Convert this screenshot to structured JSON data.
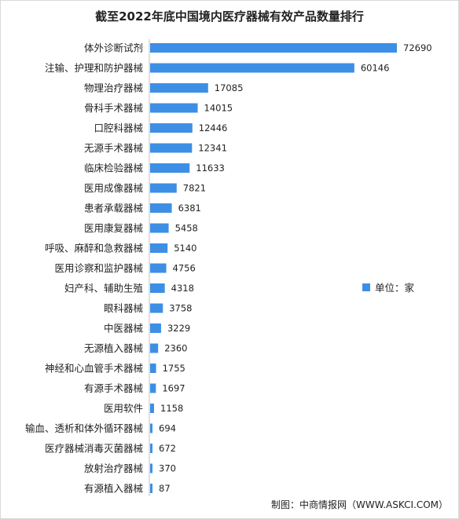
{
  "chart_data": {
    "type": "bar",
    "orientation": "horizontal",
    "title": "截至2022年底中国境内医疗器械有效产品数量排行",
    "categories": [
      "体外诊断试剂",
      "注输、护理和防护器械",
      "物理治疗器械",
      "骨科手术器械",
      "口腔科器械",
      "无源手术器械",
      "临床检验器械",
      "医用成像器械",
      "患者承载器械",
      "医用康复器械",
      "呼吸、麻醉和急救器械",
      "医用诊察和监护器械",
      "妇产科、辅助生殖",
      "眼科器械",
      "中医器械",
      "无源植入器械",
      "神经和心血管手术器械",
      "有源手术器械",
      "医用软件",
      "输血、透析和体外循环器械",
      "医疗器械消毒灭菌器械",
      "放射治疗器械",
      "有源植入器械"
    ],
    "values": [
      72690,
      60146,
      17085,
      14015,
      12446,
      12341,
      11633,
      7821,
      6381,
      5458,
      5140,
      4756,
      4318,
      3758,
      3229,
      2360,
      1755,
      1697,
      1158,
      694,
      672,
      370,
      87
    ],
    "value_labels": [
      "72690",
      "60146",
      "17085",
      "14015",
      "12446",
      "12341",
      "11633",
      "7821",
      "6381",
      "5458",
      "5140",
      "4756",
      "4318",
      "3758",
      "3229",
      "2360",
      "1755",
      "1697",
      "1158",
      "694",
      "672",
      "370",
      "87"
    ],
    "legend": {
      "label": "单位：家",
      "placement": "right-middle"
    },
    "bar_color": "#3d8fe6",
    "grid": false
  },
  "source": "制图：中商情报网（WWW.ASKCI.COM）"
}
